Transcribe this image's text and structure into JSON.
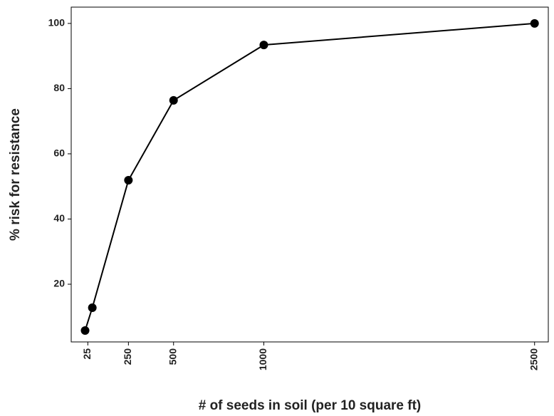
{
  "chart_data": {
    "type": "line",
    "x_label": "# of seeds in soil (per 10 square ft)",
    "y_label": "% risk for resistance",
    "x": [
      10,
      50,
      250,
      500,
      1000,
      2500
    ],
    "series": [
      {
        "name": "risk",
        "color": "#000000",
        "values": [
          5.8,
          12.8,
          51.9,
          76.4,
          93.4,
          100
        ]
      }
    ],
    "xlim": [
      -67,
      2576
    ],
    "ylim": [
      2.3,
      105
    ],
    "xticks": [
      25,
      250,
      500,
      1000,
      2500
    ],
    "yticks": [
      20,
      40,
      60,
      80,
      100
    ],
    "grid": false
  }
}
